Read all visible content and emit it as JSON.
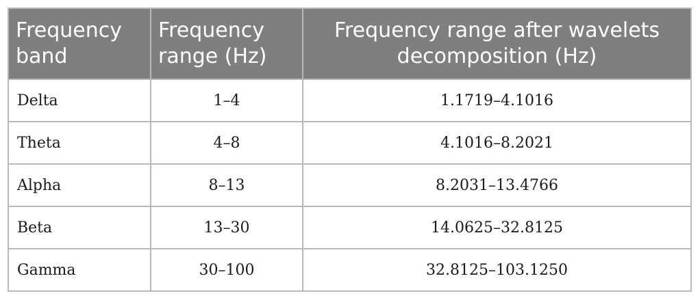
{
  "table": {
    "headers": [
      [
        "Frequency",
        "band"
      ],
      [
        "Frequency",
        "range (Hz)"
      ],
      [
        "Frequency range after wavelets",
        "decomposition (Hz)"
      ]
    ],
    "rows": [
      [
        "Delta",
        "1–4",
        "1.1719–4.1016"
      ],
      [
        "Theta",
        "4–8",
        "4.1016–8.2021"
      ],
      [
        "Alpha",
        "8–13",
        "8.2031–13.4766"
      ],
      [
        "Beta",
        "13–30",
        "14.0625–32.8125"
      ],
      [
        "Gamma",
        "30–100",
        "32.8125–103.1250"
      ]
    ]
  }
}
